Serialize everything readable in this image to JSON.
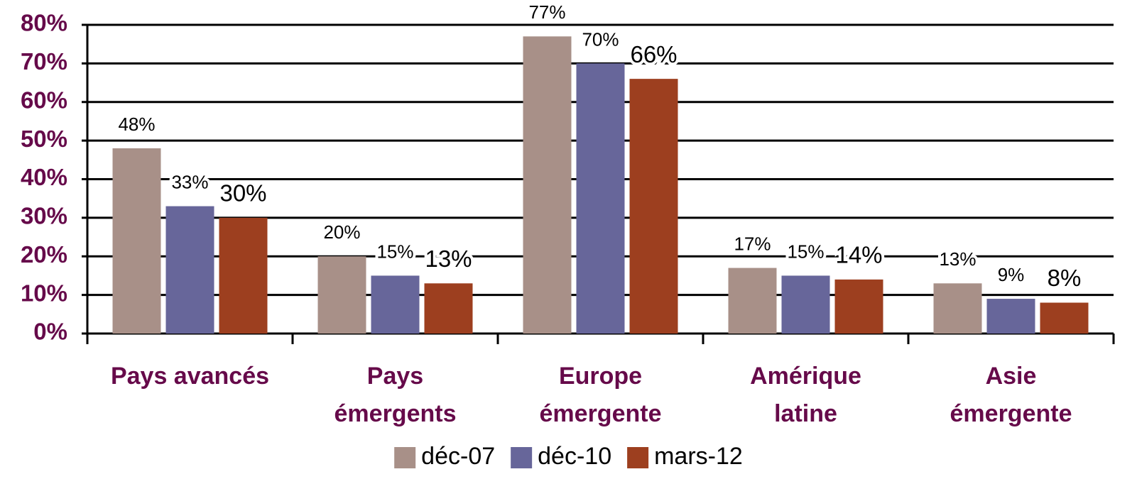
{
  "chart_data": {
    "type": "bar",
    "categories": [
      [
        "Pays avancés"
      ],
      [
        "Pays",
        "émergents"
      ],
      [
        "Europe",
        "émergente"
      ],
      [
        "Amérique",
        "latine"
      ],
      [
        "Asie",
        "émergente"
      ]
    ],
    "series": [
      {
        "name": "déc-07",
        "color": "#a89088",
        "values": [
          48,
          20,
          77,
          17,
          13
        ],
        "value_labels": [
          "48%",
          "20%",
          "77%",
          "17%",
          "13%"
        ]
      },
      {
        "name": "déc-10",
        "color": "#67669a",
        "values": [
          33,
          15,
          70,
          15,
          9
        ],
        "value_labels": [
          "33%",
          "15%",
          "70%",
          "15%",
          "9%"
        ]
      },
      {
        "name": "mars-12",
        "color": "#9d3f1f",
        "values": [
          30,
          13,
          66,
          14,
          8
        ],
        "value_labels": [
          "30%",
          "13%",
          "66%",
          "14%",
          "8%"
        ]
      }
    ],
    "ylim": [
      0,
      80
    ],
    "yticks": [
      {
        "value": 0,
        "label": "0%"
      },
      {
        "value": 10,
        "label": "10%"
      },
      {
        "value": 20,
        "label": "20%"
      },
      {
        "value": 30,
        "label": "30%"
      },
      {
        "value": 40,
        "label": "40%"
      },
      {
        "value": 50,
        "label": "50%"
      },
      {
        "value": 60,
        "label": "60%"
      },
      {
        "value": 70,
        "label": "70%"
      },
      {
        "value": 80,
        "label": "80%"
      }
    ],
    "grid": true,
    "legend": "bottom"
  }
}
